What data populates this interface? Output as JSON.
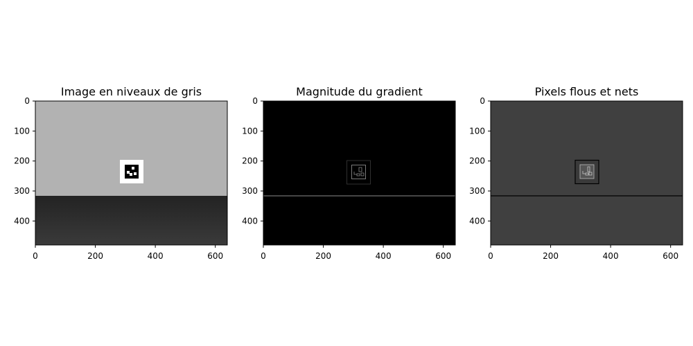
{
  "chart_data": [
    {
      "type": "image",
      "title": "Image en niveaux de gris",
      "xlim": [
        0,
        640
      ],
      "ylim": [
        480,
        0
      ],
      "xticks": [
        "0",
        "200",
        "400",
        "600"
      ],
      "yticks": [
        "0",
        "100",
        "200",
        "300",
        "400"
      ],
      "colors": {
        "upper": "#b2b2b2",
        "lower": "#2b2b2b",
        "marker_border": "#ffffff",
        "marker_inner": "#000000"
      }
    },
    {
      "type": "image",
      "title": "Magnitude du gradient",
      "xlim": [
        0,
        640
      ],
      "ylim": [
        480,
        0
      ],
      "xticks": [
        "0",
        "200",
        "400",
        "600"
      ],
      "yticks": [
        "0",
        "100",
        "200",
        "300",
        "400"
      ],
      "colors": {
        "background": "#000000",
        "edges": "#6a6a6a"
      }
    },
    {
      "type": "image",
      "title": "Pixels flous et nets",
      "xlim": [
        0,
        640
      ],
      "ylim": [
        480,
        0
      ],
      "xticks": [
        "0",
        "200",
        "400",
        "600"
      ],
      "yticks": [
        "0",
        "100",
        "200",
        "300",
        "400"
      ],
      "colors": {
        "background": "#404040",
        "edges": "#000000",
        "highlight": "#b0b0b0"
      }
    }
  ]
}
